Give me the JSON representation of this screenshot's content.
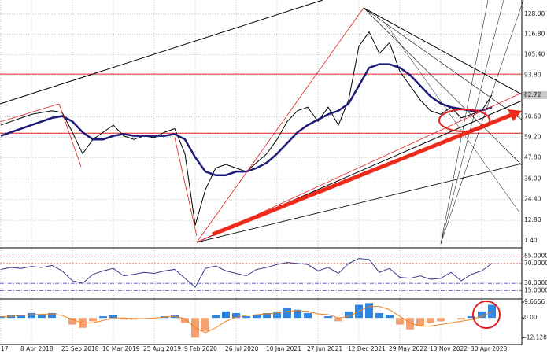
{
  "chart_data": [
    {
      "type": "line",
      "series": [
        {
          "color": "#000000",
          "values": [
            66,
            68,
            70,
            72,
            73,
            74,
            73,
            62,
            50,
            58,
            62,
            66,
            60,
            58,
            60,
            59,
            62,
            64,
            50,
            10,
            30,
            42,
            44,
            42,
            40,
            45,
            50,
            58,
            68,
            74,
            76,
            68,
            76,
            66,
            80,
            110,
            118,
            106,
            112,
            96,
            88,
            80,
            74,
            72,
            76,
            70,
            72,
            74,
            82.72,
            null,
            null
          ]
        },
        {
          "color": "#1c1c78",
          "values": [
            60,
            62,
            64,
            66,
            68,
            70,
            71,
            68,
            62,
            58,
            58,
            60,
            61,
            60,
            60,
            60,
            60,
            61,
            58,
            48,
            40,
            38,
            38,
            40,
            40,
            42,
            45,
            50,
            56,
            62,
            66,
            69,
            72,
            74,
            78,
            88,
            98,
            100,
            100,
            98,
            94,
            88,
            82,
            78,
            76,
            75,
            74,
            74,
            76,
            null,
            null
          ]
        }
      ],
      "hlines": [
        94.5,
        61.5
      ],
      "hline_color": "#e02020",
      "ylim": [
        -1.65,
        134.96
      ],
      "yticks": [
        {
          "value": 128,
          "label": "128.00"
        },
        {
          "value": 116.8,
          "label": "116.80"
        },
        {
          "value": 105.4,
          "label": "105.40"
        },
        {
          "value": 93.8,
          "label": "93.80"
        },
        {
          "value": 70.6,
          "label": "70.60"
        },
        {
          "value": 59.2,
          "label": "59.20"
        },
        {
          "value": 47.8,
          "label": "47.80"
        },
        {
          "value": 36,
          "label": "36.00"
        },
        {
          "value": 24.4,
          "label": "24.40"
        },
        {
          "value": 12.8,
          "label": "12.80"
        },
        {
          "value": 1.4,
          "label": "1.40"
        }
      ],
      "grid": true
    },
    {
      "type": "line",
      "series": [
        {
          "color": "#3a3a8a",
          "values": [
            58,
            62,
            60,
            64,
            62,
            66,
            55,
            35,
            30,
            48,
            55,
            60,
            45,
            48,
            52,
            50,
            55,
            58,
            40,
            22,
            60,
            65,
            55,
            50,
            45,
            58,
            62,
            68,
            72,
            70,
            68,
            55,
            62,
            50,
            70,
            80,
            78,
            52,
            60,
            42,
            40,
            45,
            38,
            40,
            52,
            35,
            48,
            55,
            70,
            null,
            null
          ]
        }
      ],
      "ylim": [
        0,
        100
      ],
      "yticks": [
        {
          "value": 85,
          "label": "85.0000"
        },
        {
          "value": 70,
          "label": "70.0000"
        },
        {
          "value": 30,
          "label": "30.0000"
        },
        {
          "value": 15,
          "label": "15.0000"
        }
      ],
      "grid": true
    },
    {
      "type": "bar",
      "categories": [
        "17",
        null,
        null,
        "8 Apr 2018",
        null,
        null,
        null,
        "23 Sep 2018",
        null,
        null,
        null,
        "10 Mar 2019",
        null,
        null,
        null,
        "25 Aug 2019",
        null,
        null,
        null,
        "9 Feb 2020",
        null,
        null,
        null,
        "26 Jul 2020",
        null,
        null,
        null,
        "10 Jan 2021",
        null,
        null,
        null,
        "27 Jun 2021",
        null,
        null,
        null,
        "12 Dec 2021",
        null,
        null,
        null,
        "29 May 2022",
        null,
        null,
        null,
        "13 Nov 2022",
        null,
        null,
        null,
        "30 Apr 2023",
        null,
        null,
        null
      ],
      "values": [
        1,
        2,
        2,
        3,
        2,
        3,
        0,
        -4,
        -6,
        -2,
        1,
        2,
        -1,
        -1,
        0,
        0,
        1,
        2,
        -3,
        -12,
        -8,
        2,
        4,
        3,
        1,
        2,
        3,
        4,
        6,
        5,
        3,
        0,
        1,
        -2,
        4,
        8,
        9,
        3,
        2,
        -4,
        -7,
        -5,
        -3,
        -2,
        0,
        -1,
        1,
        4,
        8,
        null,
        null
      ],
      "color": "#2f86e0",
      "negative_color": "#f4a070",
      "series": [
        {
          "color": "#f08020",
          "values": [
            0.5,
            1,
            1.5,
            2,
            2.2,
            2.5,
            1.5,
            -1,
            -3,
            -3,
            -1.5,
            0,
            0,
            -0.5,
            -0.3,
            0,
            0.5,
            1,
            -0.5,
            -6,
            -9,
            -6,
            -2,
            0.5,
            1.5,
            2,
            2.5,
            3,
            4,
            4.5,
            4,
            2.5,
            2,
            0,
            1,
            4,
            7,
            7,
            5,
            1,
            -3,
            -5,
            -5,
            -4,
            -3,
            -2,
            -1,
            1,
            4,
            null,
            null
          ]
        }
      ],
      "ylim": [
        -15.7,
        11.1
      ],
      "yticks": [
        9.6656,
        {
          "value": 0,
          "label": "0.00"
        },
        -12.1283
      ],
      "grid": false
    }
  ]
}
